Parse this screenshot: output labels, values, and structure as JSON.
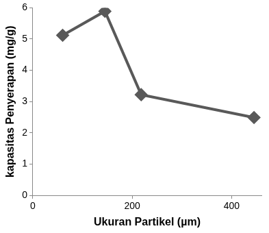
{
  "chart_data": {
    "type": "line",
    "x_label": "Ukuran Partikel (µm)",
    "y_label": "kapasitas Penyerapan (mg/g)",
    "x": [
      60,
      145,
      218,
      445
    ],
    "values": [
      5.12,
      5.89,
      3.22,
      2.49
    ],
    "color": "#595959",
    "marker": "diamond",
    "line_style": "solid",
    "xlim": [
      0,
      460
    ],
    "xticks": [
      0,
      200,
      400
    ],
    "ylim": [
      0,
      6
    ],
    "yticks": [
      0,
      1,
      2,
      3,
      4,
      5,
      6
    ],
    "grid": false
  }
}
